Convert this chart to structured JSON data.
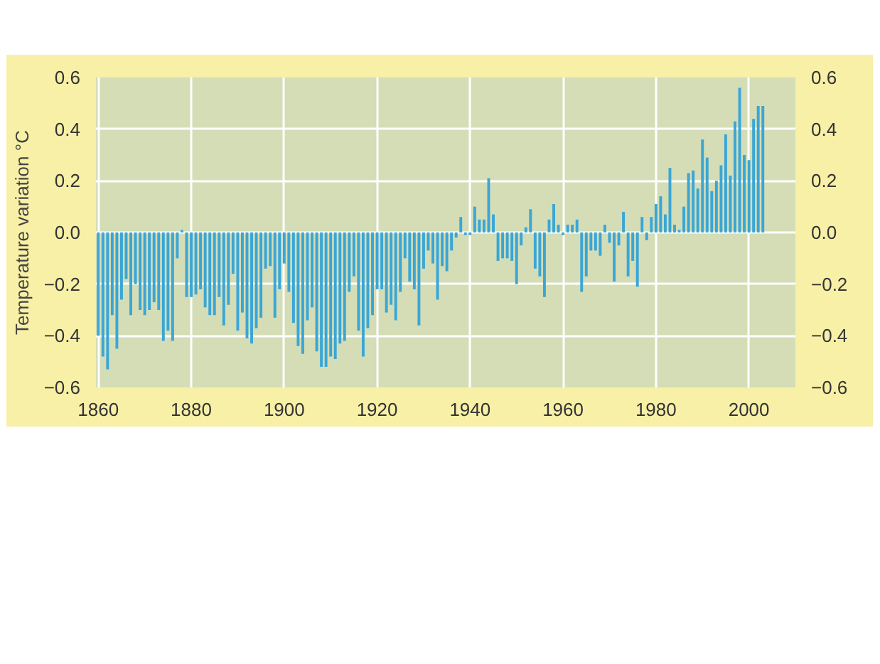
{
  "chart_data": {
    "type": "bar",
    "ylabel": "Temperature variation °C",
    "x": [
      1860,
      1861,
      1862,
      1863,
      1864,
      1865,
      1866,
      1867,
      1868,
      1869,
      1870,
      1871,
      1872,
      1873,
      1874,
      1875,
      1876,
      1877,
      1878,
      1879,
      1880,
      1881,
      1882,
      1883,
      1884,
      1885,
      1886,
      1887,
      1888,
      1889,
      1890,
      1891,
      1892,
      1893,
      1894,
      1895,
      1896,
      1897,
      1898,
      1899,
      1900,
      1901,
      1902,
      1903,
      1904,
      1905,
      1906,
      1907,
      1908,
      1909,
      1910,
      1911,
      1912,
      1913,
      1914,
      1915,
      1916,
      1917,
      1918,
      1919,
      1920,
      1921,
      1922,
      1923,
      1924,
      1925,
      1926,
      1927,
      1928,
      1929,
      1930,
      1931,
      1932,
      1933,
      1934,
      1935,
      1936,
      1937,
      1938,
      1939,
      1940,
      1941,
      1942,
      1943,
      1944,
      1945,
      1946,
      1947,
      1948,
      1949,
      1950,
      1951,
      1952,
      1953,
      1954,
      1955,
      1956,
      1957,
      1958,
      1959,
      1960,
      1961,
      1962,
      1963,
      1964,
      1965,
      1966,
      1967,
      1968,
      1969,
      1970,
      1971,
      1972,
      1973,
      1974,
      1975,
      1976,
      1977,
      1978,
      1979,
      1980,
      1981,
      1982,
      1983,
      1984,
      1985,
      1986,
      1987,
      1988,
      1989,
      1990,
      1991,
      1992,
      1993,
      1994,
      1995,
      1996,
      1997,
      1998,
      1999,
      2000,
      2001,
      2002,
      2003
    ],
    "values": [
      -0.4,
      -0.48,
      -0.53,
      -0.32,
      -0.45,
      -0.26,
      -0.18,
      -0.32,
      -0.2,
      -0.3,
      -0.32,
      -0.3,
      -0.27,
      -0.3,
      -0.42,
      -0.38,
      -0.42,
      -0.1,
      0.01,
      -0.25,
      -0.25,
      -0.24,
      -0.22,
      -0.29,
      -0.32,
      -0.32,
      -0.25,
      -0.36,
      -0.28,
      -0.16,
      -0.38,
      -0.31,
      -0.41,
      -0.43,
      -0.37,
      -0.33,
      -0.14,
      -0.13,
      -0.33,
      -0.22,
      -0.12,
      -0.23,
      -0.35,
      -0.44,
      -0.47,
      -0.34,
      -0.29,
      -0.46,
      -0.52,
      -0.52,
      -0.48,
      -0.49,
      -0.43,
      -0.42,
      -0.23,
      -0.17,
      -0.38,
      -0.48,
      -0.37,
      -0.32,
      -0.22,
      -0.22,
      -0.31,
      -0.28,
      -0.34,
      -0.23,
      -0.1,
      -0.19,
      -0.22,
      -0.36,
      -0.14,
      -0.07,
      -0.12,
      -0.26,
      -0.13,
      -0.15,
      -0.07,
      -0.02,
      0.06,
      -0.01,
      -0.01,
      0.1,
      0.05,
      0.05,
      0.21,
      0.07,
      -0.11,
      -0.1,
      -0.1,
      -0.11,
      -0.2,
      -0.05,
      0.02,
      0.09,
      -0.14,
      -0.17,
      -0.25,
      0.05,
      0.11,
      0.03,
      -0.01,
      0.03,
      0.03,
      0.05,
      -0.23,
      -0.17,
      -0.07,
      -0.07,
      -0.09,
      0.03,
      -0.04,
      -0.19,
      -0.05,
      0.08,
      -0.17,
      -0.11,
      -0.21,
      0.06,
      -0.03,
      0.06,
      0.11,
      0.14,
      0.07,
      0.25,
      0.03,
      0.01,
      0.1,
      0.23,
      0.24,
      0.17,
      0.36,
      0.29,
      0.16,
      0.2,
      0.26,
      0.38,
      0.22,
      0.43,
      0.56,
      0.3,
      0.28,
      0.44,
      0.49,
      0.49
    ],
    "color": "#3aa6d6",
    "xlim": [
      1859.5,
      2010
    ],
    "xticks": [
      1860,
      1880,
      1900,
      1920,
      1940,
      1960,
      1980,
      2000
    ],
    "ylim": [
      -0.6,
      0.6
    ],
    "yticks": [
      {
        "value": -0.6,
        "label": "−0.6"
      },
      {
        "value": -0.4,
        "label": "−0.4"
      },
      {
        "value": -0.2,
        "label": "−0.2"
      },
      {
        "value": 0,
        "label": "0.0"
      },
      {
        "value": 0.2,
        "label": "0.2"
      },
      {
        "value": 0.4,
        "label": "0.4"
      },
      {
        "value": 0.6,
        "label": "0.6"
      }
    ],
    "y2lim": [
      -0.6,
      0.6
    ],
    "y2ticks": [
      {
        "value": -0.6,
        "label": "−0.6"
      },
      {
        "value": -0.4,
        "label": "−0.4"
      },
      {
        "value": -0.2,
        "label": "−0.2"
      },
      {
        "value": 0,
        "label": "0.0"
      },
      {
        "value": 0.2,
        "label": "0.2"
      },
      {
        "value": 0.4,
        "label": "0.4"
      },
      {
        "value": 0.6,
        "label": "0.6"
      }
    ],
    "grid": true
  }
}
